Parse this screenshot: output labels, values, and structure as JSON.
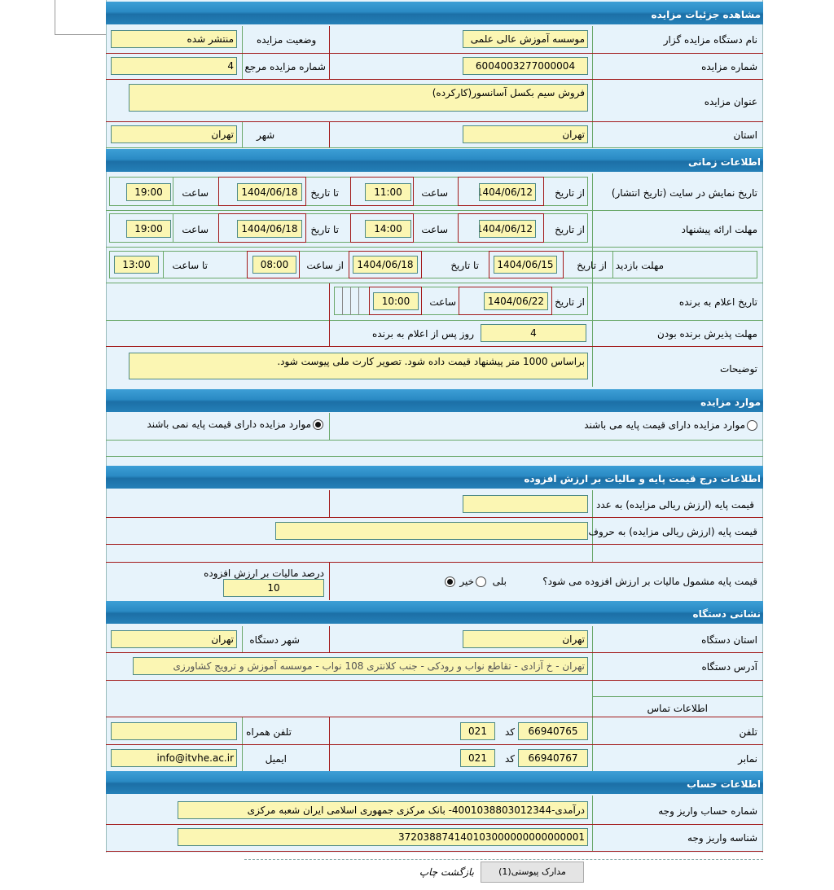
{
  "sections": {
    "details": "مشاهده جزئیات مزایده",
    "timing": "اطلاعات زمانی",
    "items": "موارد مزایده",
    "price": "اطلاعات درج قیمت پایه و مالیات بر ارزش افزوده",
    "org_address": "نشانی دستگاه",
    "account": "اطلاعات حساب"
  },
  "details": {
    "org_label": "نام دستگاه مزایده گزار",
    "org_value": "موسسه آموزش عالی علمی",
    "status_label": "وضعیت مزایده",
    "status_value": "منتشر شده",
    "number_label": "شماره مزایده",
    "number_value": "6004003277000004",
    "ref_label": "شماره مزایده مرجع",
    "ref_value": "4",
    "title_label": "عنوان مزایده",
    "title_value": "فروش سیم بکسل آسانسور(کارکرده)",
    "province_label": "استان",
    "province_value": "تهران",
    "city_label": "شهر",
    "city_value": "تهران"
  },
  "timing": {
    "from_date": "از تاریخ",
    "to_date": "تا تاریخ",
    "time": "ساعت",
    "from_time": "از ساعت",
    "to_time": "تا ساعت",
    "publish": {
      "label": "تاریخ نمایش در سایت (تاریخ انتشار)",
      "from": "1404/06/12",
      "from_time": "11:00",
      "to": "1404/06/18",
      "to_time": "19:00"
    },
    "offer": {
      "label": "مهلت ارائه پیشنهاد",
      "from": "1404/06/12",
      "from_time": "14:00",
      "to": "1404/06/18",
      "to_time": "19:00"
    },
    "visit": {
      "label": "مهلت بازدید",
      "from": "1404/06/15",
      "to": "1404/06/18",
      "from_time": "08:00",
      "to_time": "13:00"
    },
    "winner": {
      "label": "تاریخ اعلام به برنده",
      "from": "1404/06/22",
      "time": "10:00"
    },
    "accept": {
      "label": "مهلت پذیرش برنده بودن",
      "value": "4",
      "suffix": "روز پس از اعلام به برنده"
    },
    "notes": {
      "label": "توضیحات",
      "value": "براساس 1000 متر پیشنهاد قیمت داده شود. تصویر کارت ملی پیوست شود."
    }
  },
  "items": {
    "option_has_base": "موارد مزایده دارای قیمت پایه می باشند",
    "option_no_base": "موارد مزایده دارای قیمت پایه نمی باشند",
    "selected": "option_no_base"
  },
  "price": {
    "base_number_label": "قیمت پایه (ارزش ریالی مزایده) به عدد",
    "base_number_value": "",
    "base_words_label": "قیمت پایه (ارزش ریالی مزایده) به حروف",
    "base_words_value": "",
    "vat_question": "قیمت پایه مشمول مالیات بر ارزش افزوده می شود؟",
    "yes": "بلی",
    "no": "خیر",
    "vat_selected": "no",
    "vat_percent_label": "درصد مالیات بر ارزش افزوده",
    "vat_percent_value": "10"
  },
  "org": {
    "province_label": "استان دستگاه",
    "province_value": "تهران",
    "city_label": "شهر دستگاه",
    "city_value": "تهران",
    "address_label": "آدرس دستگاه",
    "address_value": "تهران - خ آزادی - تقاطع نواب و رودکی - جنب کلانتری 108 نواب - موسسه آموزش و ترویج کشاورزی",
    "contact_label": "اطلاعات تماس",
    "phone_label": "تلفن",
    "phone_value": "66940765",
    "code_label": "کد",
    "phone_code": "021",
    "mobile_label": "تلفن همراه",
    "mobile_value": "",
    "fax_label": "نمابر",
    "fax_value": "66940767",
    "fax_code": "021",
    "email_label": "ایمیل",
    "email_value": "info@itvhe.ac.ir"
  },
  "account": {
    "number_label": "شماره حساب واریز وجه",
    "number_value": "درآمدی-4001038803012344- بانک مرکزی جمهوری اسلامی ایران شعبه مرکزی",
    "id_label": "شناسه واریز وجه",
    "id_value": "372038874140103000000000000001"
  },
  "footer": {
    "attachments_button": "مدارک پیوستی(1)",
    "back_print": "بازگشت چاپ"
  },
  "colors": {
    "header": "#2a8ac4",
    "field": "#fbf6b3",
    "panel": "#e7f3fb",
    "row_border": "#a21a1a"
  }
}
